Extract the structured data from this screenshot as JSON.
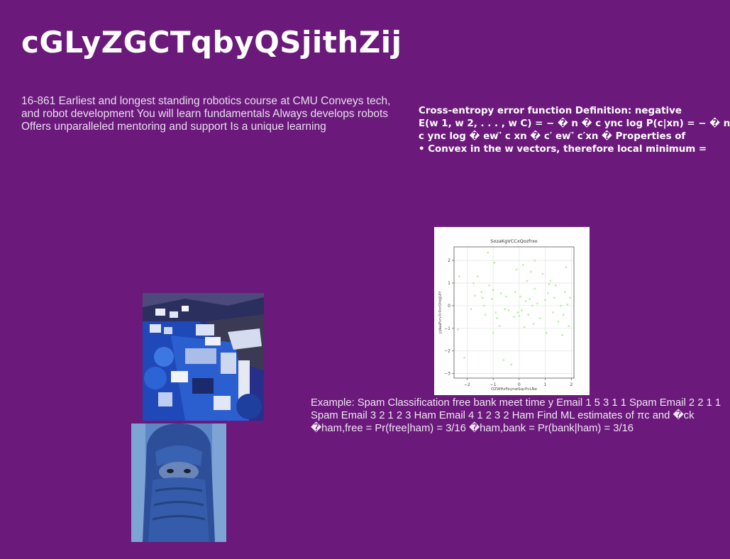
{
  "slide": {
    "title": "cGLyZGCTqbyQSjithZij",
    "course_text": "16-861 Earliest and longest standing robotics course at CMU Conveys tech, and robot development You will learn fundamentals Always develops robots Offers unparalleled mentoring and support Is a unique learning",
    "cross_entropy_lines": [
      "Cross-entropy error function Definition: negative",
      "E(w 1, w 2, . . . , w C) = − � n � c ync log P(c|xn) = − � n",
      "c ync log � ew ⃗ c xn � c′ ew ⃗ c′xn � Properties of",
      "• Convex in the w vectors, therefore local minimum ="
    ],
    "example_text": "Example: Spam Classification free bank meet time y Email 1 5 3 1 1 Spam Email 2 2 1 1 Spam Email 3 2 1 2 3 Ham Email 4 1 2 3 2 Ham Find ML estimates of πc and �ck �ham,free = Pr(free|ham) = 3/16 �ham,bank = Pr(bank|ham) = 3/16",
    "images": {
      "harbor": "harbor-village-photo",
      "portrait": "blue-turban-portrait-photo"
    }
  },
  "chart_data": {
    "type": "scatter",
    "title": "SozaKgVCCxQozfrxo",
    "xlabel": "OZWHzFeynwSqcPcLNe",
    "ylabel": "yjdaaPvrvXrXnrOhbJjUlY",
    "xlim": [
      -2.5,
      2.1
    ],
    "ylim": [
      -3.2,
      2.6
    ],
    "xticks": [
      -2,
      -1,
      0,
      1,
      2
    ],
    "yticks": [
      2,
      1,
      0,
      -1,
      -2,
      -3
    ],
    "grid": true,
    "marker_color": "#b5eea6",
    "points": [
      [
        -2.3,
        1.3
      ],
      [
        -2.35,
        -1.05
      ],
      [
        -1.85,
        -0.15
      ],
      [
        -1.75,
        1.0
      ],
      [
        -1.7,
        0.45
      ],
      [
        -1.6,
        1.3
      ],
      [
        -1.45,
        0.6
      ],
      [
        -1.4,
        0.35
      ],
      [
        -1.35,
        0.0
      ],
      [
        -1.2,
        2.35
      ],
      [
        -1.15,
        0.9
      ],
      [
        -1.05,
        0.3
      ],
      [
        -1.0,
        -1.2
      ],
      [
        -1.0,
        0.7
      ],
      [
        -0.95,
        1.9
      ],
      [
        -0.9,
        -0.3
      ],
      [
        -0.85,
        -0.55
      ],
      [
        -0.75,
        -0.9
      ],
      [
        -0.7,
        0.55
      ],
      [
        -0.6,
        -2.4
      ],
      [
        -0.55,
        -0.15
      ],
      [
        -0.5,
        0.4
      ],
      [
        -0.4,
        -0.2
      ],
      [
        -0.3,
        -2.6
      ],
      [
        -0.2,
        -0.5
      ],
      [
        -0.15,
        0.6
      ],
      [
        -0.1,
        1.6
      ],
      [
        -0.05,
        -0.3
      ],
      [
        0.0,
        -0.45
      ],
      [
        0.05,
        0.4
      ],
      [
        0.1,
        -0.2
      ],
      [
        0.15,
        1.8
      ],
      [
        0.2,
        -0.95
      ],
      [
        0.25,
        0.2
      ],
      [
        0.3,
        1.1
      ],
      [
        0.35,
        -0.4
      ],
      [
        0.4,
        0.3
      ],
      [
        0.45,
        1.5
      ],
      [
        0.5,
        0.0
      ],
      [
        0.55,
        -0.8
      ],
      [
        0.6,
        0.75
      ],
      [
        0.7,
        0.1
      ],
      [
        0.8,
        -0.55
      ],
      [
        0.9,
        1.4
      ],
      [
        1.0,
        0.25
      ],
      [
        1.05,
        -1.2
      ],
      [
        1.1,
        0.55
      ],
      [
        1.2,
        1.1
      ],
      [
        1.3,
        -0.3
      ],
      [
        1.35,
        0.35
      ],
      [
        1.4,
        0.9
      ],
      [
        1.5,
        -0.7
      ],
      [
        1.6,
        0.0
      ],
      [
        1.65,
        -1.3
      ],
      [
        1.7,
        -0.4
      ],
      [
        1.75,
        0.6
      ],
      [
        1.8,
        1.7
      ],
      [
        1.85,
        0.05
      ],
      [
        1.9,
        -0.9
      ],
      [
        1.95,
        0.35
      ],
      [
        -2.1,
        -2.3
      ],
      [
        -1.3,
        -0.4
      ],
      [
        0.6,
        2.0
      ],
      [
        1.15,
        0.95
      ]
    ]
  }
}
